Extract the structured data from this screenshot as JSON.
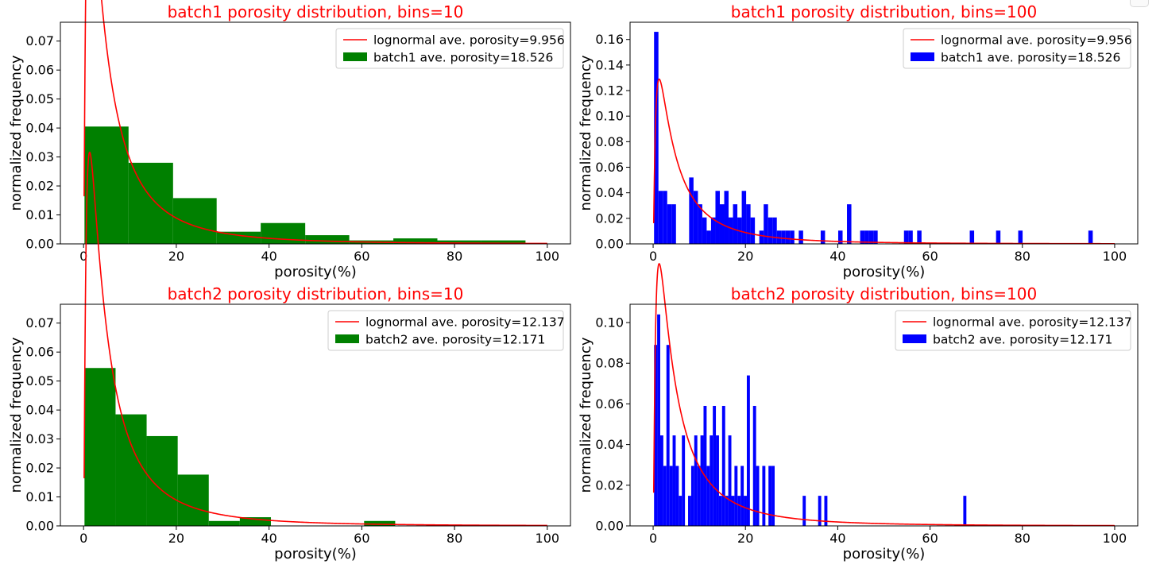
{
  "figure": {
    "background": "#ffffff"
  },
  "chart_data": [
    {
      "type": "bar",
      "title": "batch1 porosity distribution, bins=10",
      "title_color": "#ff0000",
      "xlabel": "porosity(%)",
      "ylabel": "normalized frequency",
      "xlim": [
        -5,
        105
      ],
      "ylim": [
        0,
        0.0765
      ],
      "xticks": [
        "0",
        "20",
        "40",
        "60",
        "80",
        "100"
      ],
      "yticks": [
        "0.00",
        "0.01",
        "0.02",
        "0.03",
        "0.04",
        "0.05",
        "0.06",
        "0.07"
      ],
      "legend_position": "upper right",
      "grid": false,
      "bar_color": "#008000",
      "curve_color": "#ff0000",
      "series": [
        {
          "name": "lognormal ave. porosity=9.956",
          "kind": "line"
        },
        {
          "name": "batch1 ave. porosity=18.526",
          "kind": "hist",
          "bins": [
            [
              0.2,
              9.7,
              0.0405
            ],
            [
              9.7,
              19.3,
              0.028
            ],
            [
              19.3,
              28.7,
              0.0158
            ],
            [
              28.7,
              38.2,
              0.0042
            ],
            [
              38.2,
              47.8,
              0.0072
            ],
            [
              47.8,
              57.3,
              0.003
            ],
            [
              57.3,
              66.8,
              0.0012
            ],
            [
              66.8,
              76.3,
              0.0019
            ],
            [
              76.3,
              85.8,
              0.0012
            ],
            [
              85.8,
              95.3,
              0.0012
            ]
          ]
        }
      ],
      "lognormal": {
        "mu": 1.66,
        "sigma": 1.18,
        "x": [
          0,
          100
        ]
      }
    },
    {
      "type": "bar",
      "title": "batch1 porosity distribution, bins=100",
      "title_color": "#ff0000",
      "xlabel": "porosity(%)",
      "ylabel": "normalized frequency",
      "xlim": [
        -5,
        105
      ],
      "ylim": [
        0,
        0.1735
      ],
      "xticks": [
        "0",
        "20",
        "40",
        "60",
        "80",
        "100"
      ],
      "yticks": [
        "0.00",
        "0.02",
        "0.04",
        "0.06",
        "0.08",
        "0.10",
        "0.12",
        "0.14",
        "0.16"
      ],
      "legend_position": "upper right",
      "grid": false,
      "bar_color": "#0000ff",
      "curve_color": "#ff0000",
      "series": [
        {
          "name": "lognormal ave. porosity=9.956",
          "kind": "line"
        },
        {
          "name": "batch1 ave. porosity=18.526",
          "kind": "hist",
          "bins": [
            [
              0.2,
              1.15,
              0.166
            ],
            [
              1.15,
              2.1,
              0.0415
            ],
            [
              2.1,
              3.05,
              0.0415
            ],
            [
              3.05,
              4.0,
              0.031
            ],
            [
              4.0,
              4.95,
              0.031
            ],
            [
              7.8,
              8.75,
              0.052
            ],
            [
              8.75,
              9.7,
              0.0415
            ],
            [
              9.7,
              10.65,
              0.031
            ],
            [
              10.65,
              11.6,
              0.0207
            ],
            [
              11.6,
              12.55,
              0.0104
            ],
            [
              12.55,
              13.5,
              0.0207
            ],
            [
              13.5,
              14.45,
              0.0415
            ],
            [
              14.45,
              15.4,
              0.031
            ],
            [
              15.4,
              16.35,
              0.0415
            ],
            [
              16.35,
              17.3,
              0.0207
            ],
            [
              17.3,
              18.25,
              0.031
            ],
            [
              18.25,
              19.2,
              0.0207
            ],
            [
              19.2,
              20.15,
              0.0415
            ],
            [
              20.15,
              21.1,
              0.031
            ],
            [
              21.1,
              22.05,
              0.0207
            ],
            [
              23.0,
              23.95,
              0.0104
            ],
            [
              23.95,
              24.9,
              0.031
            ],
            [
              24.9,
              25.85,
              0.0207
            ],
            [
              25.85,
              26.8,
              0.0207
            ],
            [
              26.8,
              27.75,
              0.0104
            ],
            [
              27.75,
              28.7,
              0.0104
            ],
            [
              28.7,
              29.65,
              0.0104
            ],
            [
              29.65,
              30.6,
              0.0104
            ],
            [
              31.55,
              32.5,
              0.0104
            ],
            [
              36.3,
              37.25,
              0.0104
            ],
            [
              40.1,
              41.05,
              0.0104
            ],
            [
              42.0,
              42.95,
              0.031
            ],
            [
              44.85,
              45.8,
              0.0104
            ],
            [
              45.8,
              46.75,
              0.0104
            ],
            [
              46.75,
              47.7,
              0.0104
            ],
            [
              47.7,
              48.65,
              0.0104
            ],
            [
              54.35,
              55.3,
              0.0104
            ],
            [
              55.3,
              56.25,
              0.0104
            ],
            [
              57.2,
              58.15,
              0.0104
            ],
            [
              68.6,
              69.55,
              0.0104
            ],
            [
              74.3,
              75.25,
              0.0104
            ],
            [
              79.1,
              80.05,
              0.0104
            ],
            [
              94.3,
              95.25,
              0.0104
            ]
          ]
        }
      ],
      "lognormal": {
        "mu": 1.66,
        "sigma": 1.18,
        "x": [
          0,
          100
        ]
      }
    },
    {
      "type": "bar",
      "title": "batch2 porosity distribution, bins=10",
      "title_color": "#ff0000",
      "xlabel": "porosity(%)",
      "ylabel": "normalized frequency",
      "xlim": [
        -5,
        105
      ],
      "ylim": [
        0,
        0.0765
      ],
      "xticks": [
        "0",
        "20",
        "40",
        "60",
        "80",
        "100"
      ],
      "yticks": [
        "0.00",
        "0.01",
        "0.02",
        "0.03",
        "0.04",
        "0.05",
        "0.06",
        "0.07"
      ],
      "legend_position": "upper right",
      "grid": false,
      "bar_color": "#008000",
      "curve_color": "#ff0000",
      "series": [
        {
          "name": "lognormal ave. porosity=12.137",
          "kind": "line"
        },
        {
          "name": "batch2 ave. porosity=12.171",
          "kind": "hist",
          "bins": [
            [
              0.2,
              6.9,
              0.0545
            ],
            [
              6.9,
              13.6,
              0.0385
            ],
            [
              13.6,
              20.3,
              0.031
            ],
            [
              20.3,
              27.0,
              0.0177
            ],
            [
              27.0,
              33.7,
              0.0017
            ],
            [
              33.7,
              40.4,
              0.003
            ],
            [
              60.5,
              67.2,
              0.0017
            ]
          ]
        }
      ],
      "lognormal": {
        "mu": 1.66,
        "sigma": 1.18,
        "x": [
          0,
          100
        ]
      }
    },
    {
      "type": "bar",
      "title": "batch2 porosity distribution, bins=100",
      "title_color": "#ff0000",
      "xlabel": "porosity(%)",
      "ylabel": "normalized frequency",
      "xlim": [
        -5,
        105
      ],
      "ylim": [
        0,
        0.109
      ],
      "xticks": [
        "0",
        "20",
        "40",
        "60",
        "80",
        "100"
      ],
      "yticks": [
        "0.00",
        "0.02",
        "0.04",
        "0.06",
        "0.08",
        "0.10"
      ],
      "legend_position": "upper right",
      "grid": false,
      "bar_color": "#0000ff",
      "curve_color": "#ff0000",
      "series": [
        {
          "name": "lognormal ave. porosity=12.137",
          "kind": "line"
        },
        {
          "name": "batch2 ave. porosity=12.171",
          "kind": "hist",
          "bins": [
            [
              0.2,
              0.87,
              0.089
            ],
            [
              0.87,
              1.54,
              0.104
            ],
            [
              1.54,
              2.21,
              0.0445
            ],
            [
              2.21,
              2.88,
              0.0295
            ],
            [
              2.88,
              3.55,
              0.089
            ],
            [
              3.55,
              4.22,
              0.0295
            ],
            [
              4.22,
              4.89,
              0.0445
            ],
            [
              4.89,
              5.56,
              0.0295
            ],
            [
              5.56,
              6.23,
              0.0148
            ],
            [
              6.23,
              6.9,
              0.0445
            ],
            [
              6.9,
              7.57,
              0.0
            ],
            [
              7.57,
              8.24,
              0.0148
            ],
            [
              8.24,
              8.91,
              0.0295
            ],
            [
              8.91,
              9.58,
              0.0445
            ],
            [
              9.58,
              10.25,
              0.0295
            ],
            [
              10.25,
              10.92,
              0.0445
            ],
            [
              10.92,
              11.59,
              0.059
            ],
            [
              11.59,
              12.26,
              0.0295
            ],
            [
              12.26,
              12.93,
              0.0445
            ],
            [
              12.93,
              13.6,
              0.059
            ],
            [
              13.6,
              14.27,
              0.0445
            ],
            [
              14.27,
              14.94,
              0.0148
            ],
            [
              14.94,
              15.61,
              0.059
            ],
            [
              15.61,
              16.28,
              0.0148
            ],
            [
              16.28,
              16.95,
              0.0445
            ],
            [
              16.95,
              17.62,
              0.0148
            ],
            [
              17.62,
              18.29,
              0.0295
            ],
            [
              18.29,
              18.96,
              0.0148
            ],
            [
              18.96,
              19.63,
              0.0295
            ],
            [
              19.63,
              20.3,
              0.0148
            ],
            [
              20.3,
              20.97,
              0.074
            ],
            [
              21.64,
              22.31,
              0.059
            ],
            [
              22.31,
              22.98,
              0.0295
            ],
            [
              23.65,
              24.32,
              0.0295
            ],
            [
              24.99,
              25.66,
              0.0295
            ],
            [
              25.66,
              26.33,
              0.0295
            ],
            [
              32.4,
              33.07,
              0.0148
            ],
            [
              35.75,
              36.42,
              0.0148
            ],
            [
              37.09,
              37.76,
              0.0148
            ],
            [
              67.2,
              67.87,
              0.0148
            ]
          ]
        }
      ],
      "lognormal": {
        "mu": 1.66,
        "sigma": 1.18,
        "x": [
          0,
          100
        ]
      }
    }
  ]
}
